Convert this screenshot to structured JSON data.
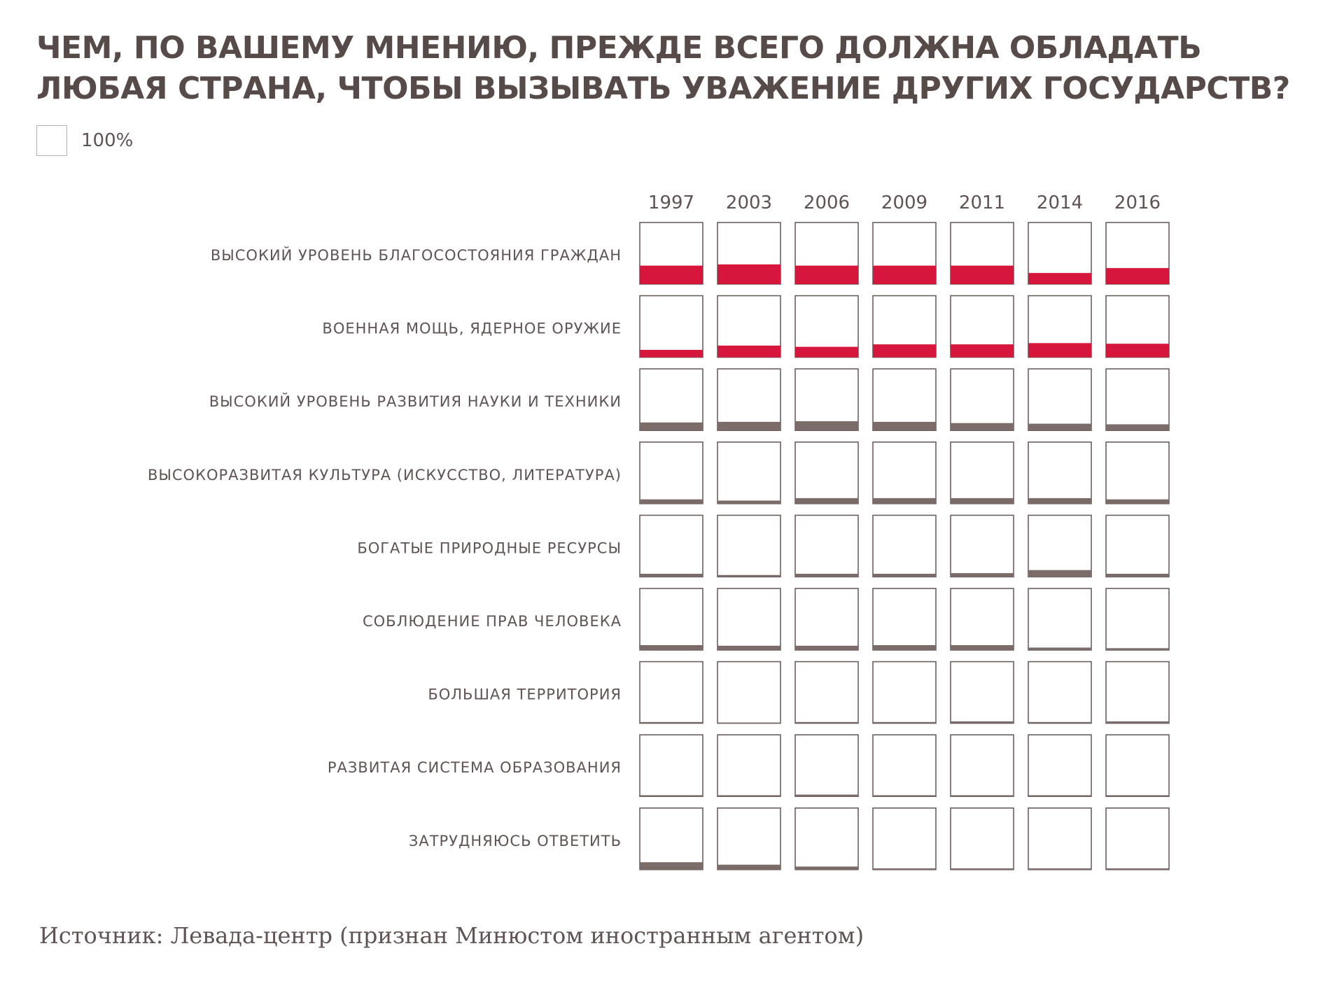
{
  "title": "ЧЕМ, ПО ВАШЕМУ МНЕНИЮ, ПРЕЖДЕ ВСЕГО ДОЛЖНА ОБЛАДАТЬ ЛЮБАЯ СТРАНА, ЧТОБЫ ВЫЗЫВАТЬ УВАЖЕНИЕ ДРУГИХ ГОСУДАРСТВ?",
  "legend": {
    "label": "100%"
  },
  "source": "Источник: Левада-центр  (признан Минюстом иностранным агентом)",
  "colors": {
    "highlight": "#d7163b",
    "normal": "#7b6b69",
    "box_border": "#6b5f5e",
    "text": "#5f5453"
  },
  "chart_data": {
    "type": "bar",
    "unit": "%",
    "ylim": [
      0,
      100
    ],
    "years": [
      "1997",
      "2003",
      "2006",
      "2009",
      "2011",
      "2014",
      "2016"
    ],
    "rows": [
      {
        "label": "ВЫСОКИЙ УРОВЕНЬ БЛАГОСОСТОЯНИЯ ГРАЖДАН",
        "highlight": true,
        "values": [
          30,
          32,
          30,
          30,
          30,
          18,
          26
        ]
      },
      {
        "label": "ВОЕННАЯ МОЩЬ, ЯДЕРНОЕ ОРУЖИЕ",
        "highlight": true,
        "values": [
          12,
          19,
          17,
          21,
          21,
          23,
          22
        ]
      },
      {
        "label": "ВЫСОКИЙ УРОВЕНЬ РАЗВИТИЯ НАУКИ И ТЕХНИКИ",
        "highlight": false,
        "values": [
          13,
          14,
          15,
          14,
          12,
          11,
          10
        ]
      },
      {
        "label": "ВЫСОКОРАЗВИТАЯ КУЛЬТУРА (ИСКУССТВО, ЛИТЕРАТУРА)",
        "highlight": false,
        "values": [
          7,
          5,
          9,
          9,
          9,
          9,
          7
        ]
      },
      {
        "label": "БОГАТЫЕ ПРИРОДНЫЕ РЕСУРСЫ",
        "highlight": false,
        "values": [
          5,
          3,
          5,
          5,
          6,
          11,
          5
        ]
      },
      {
        "label": "СОБЛЮДЕНИЕ ПРАВ ЧЕЛОВЕКА",
        "highlight": false,
        "values": [
          8,
          7,
          7,
          8,
          8,
          4,
          3
        ]
      },
      {
        "label": "БОЛЬШАЯ ТЕРРИТОРИЯ",
        "highlight": false,
        "values": [
          2,
          1,
          2,
          2,
          3,
          2,
          3
        ]
      },
      {
        "label": "РАЗВИТАЯ СИСТЕМА ОБРАЗОВАНИЯ",
        "highlight": false,
        "values": [
          2,
          2,
          3,
          2,
          2,
          2,
          2
        ]
      },
      {
        "label": "ЗАТРУДНЯЮСЬ ОТВЕТИТЬ",
        "highlight": false,
        "values": [
          12,
          8,
          5,
          2,
          2,
          2,
          2
        ]
      }
    ]
  }
}
